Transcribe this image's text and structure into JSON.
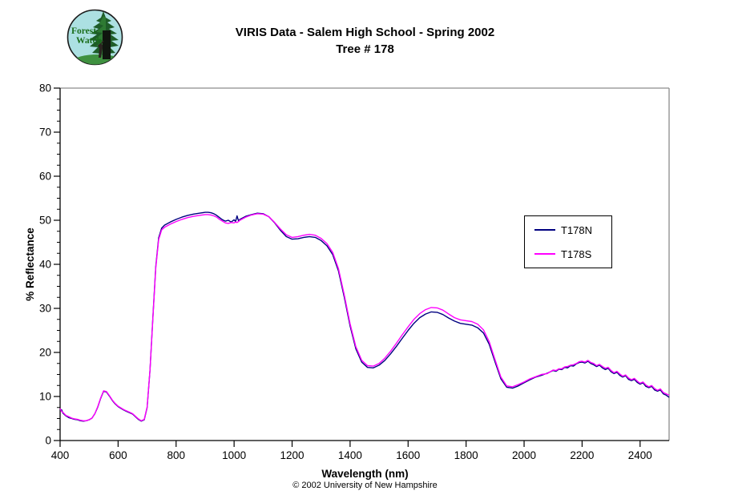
{
  "logo": {
    "line1": "Forest",
    "line2": "Watch"
  },
  "title": {
    "line1": "VIRIS Data - Salem High School - Spring 2002",
    "line2": "Tree # 178"
  },
  "footer": {
    "copyright": "© 2002 University of New Hampshire"
  },
  "chart_data": {
    "type": "line",
    "title": "VIRIS Data - Salem High School - Spring 2002, Tree # 178",
    "xlabel": "Wavelength (nm)",
    "ylabel": "% Reflectance",
    "xlim": [
      400,
      2500
    ],
    "ylim": [
      0,
      80
    ],
    "xticks": [
      400,
      600,
      800,
      1000,
      1200,
      1400,
      1600,
      1800,
      2000,
      2200,
      2400
    ],
    "yticks": [
      0,
      10,
      20,
      30,
      40,
      50,
      60,
      70,
      80
    ],
    "y_minor_step": 2.5,
    "grid": false,
    "legend_position": "right-middle",
    "frame_color": "#8c8c8c",
    "axis_color": "#000000",
    "x": [
      400,
      405,
      410,
      420,
      430,
      440,
      450,
      460,
      470,
      480,
      490,
      500,
      510,
      520,
      530,
      540,
      550,
      560,
      570,
      580,
      590,
      600,
      610,
      620,
      630,
      640,
      650,
      660,
      670,
      680,
      690,
      700,
      710,
      720,
      730,
      740,
      750,
      760,
      780,
      800,
      820,
      840,
      860,
      880,
      900,
      910,
      920,
      930,
      940,
      950,
      960,
      970,
      980,
      990,
      1000,
      1005,
      1010,
      1015,
      1020,
      1040,
      1060,
      1080,
      1100,
      1120,
      1140,
      1160,
      1180,
      1200,
      1220,
      1240,
      1260,
      1280,
      1300,
      1320,
      1340,
      1360,
      1380,
      1400,
      1420,
      1440,
      1460,
      1480,
      1500,
      1520,
      1540,
      1560,
      1580,
      1600,
      1620,
      1640,
      1660,
      1680,
      1700,
      1720,
      1740,
      1760,
      1780,
      1800,
      1820,
      1840,
      1860,
      1880,
      1900,
      1920,
      1940,
      1960,
      1980,
      2000,
      2020,
      2040,
      2060,
      2080,
      2100,
      2110,
      2120,
      2130,
      2140,
      2150,
      2160,
      2170,
      2180,
      2190,
      2200,
      2210,
      2220,
      2230,
      2240,
      2250,
      2260,
      2270,
      2280,
      2290,
      2300,
      2310,
      2320,
      2330,
      2340,
      2350,
      2360,
      2370,
      2380,
      2390,
      2400,
      2410,
      2420,
      2430,
      2440,
      2450,
      2460,
      2470,
      2480,
      2490,
      2500
    ],
    "series": [
      {
        "name": "T178N",
        "color": "#000080",
        "values": [
          6.8,
          7.0,
          6.2,
          5.6,
          5.2,
          5.0,
          4.8,
          4.7,
          4.5,
          4.4,
          4.5,
          4.7,
          5.1,
          6.1,
          7.6,
          9.6,
          11.2,
          11.0,
          10.1,
          9.1,
          8.3,
          7.7,
          7.3,
          6.9,
          6.6,
          6.3,
          6.0,
          5.4,
          4.8,
          4.4,
          4.7,
          7.5,
          16.0,
          28.0,
          39.5,
          46.0,
          48.2,
          48.9,
          49.6,
          50.2,
          50.7,
          51.1,
          51.4,
          51.6,
          51.8,
          51.8,
          51.7,
          51.5,
          51.1,
          50.6,
          50.1,
          49.8,
          50.0,
          49.6,
          50.1,
          49.7,
          51.0,
          49.9,
          50.2,
          50.9,
          51.3,
          51.6,
          51.5,
          50.8,
          49.4,
          47.7,
          46.3,
          45.7,
          45.8,
          46.1,
          46.3,
          46.1,
          45.4,
          44.2,
          42.2,
          38.5,
          32.5,
          26.0,
          20.8,
          17.8,
          16.6,
          16.5,
          17.1,
          18.2,
          19.7,
          21.4,
          23.2,
          25.0,
          26.6,
          27.9,
          28.7,
          29.2,
          29.1,
          28.6,
          27.8,
          27.1,
          26.6,
          26.4,
          26.2,
          25.6,
          24.4,
          21.8,
          17.8,
          14.0,
          12.1,
          11.9,
          12.4,
          13.1,
          13.8,
          14.4,
          14.8,
          15.3,
          15.9,
          15.7,
          16.2,
          16.1,
          16.6,
          16.5,
          17.0,
          16.9,
          17.4,
          17.7,
          17.8,
          17.6,
          18.0,
          17.5,
          17.2,
          16.8,
          17.1,
          16.5,
          16.1,
          16.4,
          15.6,
          15.2,
          15.5,
          14.8,
          14.4,
          14.7,
          13.9,
          13.6,
          13.9,
          13.2,
          12.8,
          13.1,
          12.3,
          12.0,
          12.3,
          11.5,
          11.2,
          11.5,
          10.6,
          10.3,
          9.8
        ]
      },
      {
        "name": "T178S",
        "color": "#ff00ff",
        "values": [
          7.3,
          6.6,
          6.4,
          5.7,
          5.4,
          5.1,
          4.9,
          4.8,
          4.6,
          4.5,
          4.5,
          4.7,
          5.1,
          6.1,
          7.7,
          9.7,
          11.3,
          11.1,
          10.2,
          9.2,
          8.4,
          7.8,
          7.4,
          7.0,
          6.7,
          6.4,
          6.1,
          5.5,
          4.9,
          4.5,
          4.8,
          7.6,
          16.0,
          27.8,
          39.2,
          45.6,
          47.8,
          48.4,
          49.1,
          49.7,
          50.2,
          50.6,
          50.9,
          51.1,
          51.3,
          51.3,
          51.2,
          51.0,
          50.7,
          50.2,
          49.8,
          49.4,
          49.3,
          49.5,
          49.4,
          49.6,
          49.5,
          49.7,
          50.0,
          50.7,
          51.2,
          51.5,
          51.4,
          50.8,
          49.5,
          48.0,
          46.7,
          46.1,
          46.3,
          46.6,
          46.8,
          46.6,
          45.9,
          44.7,
          42.7,
          39.0,
          33.0,
          26.5,
          21.3,
          18.2,
          17.0,
          16.9,
          17.5,
          18.7,
          20.3,
          22.1,
          24.0,
          25.8,
          27.5,
          28.8,
          29.7,
          30.2,
          30.1,
          29.6,
          28.7,
          27.9,
          27.4,
          27.2,
          27.0,
          26.4,
          25.1,
          22.4,
          18.3,
          14.4,
          12.4,
          12.2,
          12.7,
          13.3,
          14.0,
          14.5,
          15.0,
          15.2,
          16.0,
          15.9,
          16.3,
          16.3,
          16.7,
          16.8,
          17.1,
          17.2,
          17.5,
          17.9,
          18.0,
          17.8,
          18.2,
          17.7,
          17.5,
          17.0,
          17.3,
          16.8,
          16.4,
          16.6,
          15.9,
          15.4,
          15.7,
          15.1,
          14.6,
          14.9,
          14.2,
          13.8,
          14.1,
          13.5,
          13.0,
          13.3,
          12.6,
          12.2,
          12.5,
          11.8,
          11.4,
          11.7,
          10.9,
          10.6,
          10.3
        ]
      }
    ]
  }
}
